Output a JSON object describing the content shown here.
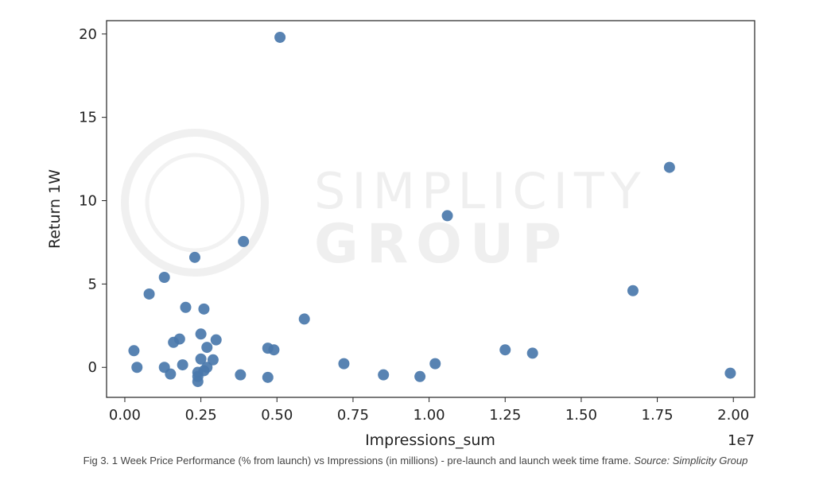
{
  "chart_data": {
    "type": "scatter",
    "xlabel": "Impressions_sum",
    "ylabel": "Return 1W",
    "x_offset_label": "1e7",
    "xlim": [
      -0.06,
      2.07
    ],
    "ylim": [
      -1.8,
      20.8
    ],
    "xticks": [
      0.0,
      0.25,
      0.5,
      0.75,
      1.0,
      1.25,
      1.5,
      1.75,
      2.0
    ],
    "xtick_labels": [
      "0.00",
      "0.25",
      "0.50",
      "0.75",
      "1.00",
      "1.25",
      "1.50",
      "1.75",
      "2.00"
    ],
    "yticks": [
      0,
      5,
      10,
      15,
      20
    ],
    "ytick_labels": [
      "0",
      "5",
      "10",
      "15",
      "20"
    ],
    "grid": false,
    "legend": "none",
    "marker_color": "#4a78ab",
    "points": [
      {
        "x": 0.04,
        "y": 0.0
      },
      {
        "x": 0.03,
        "y": 1.0
      },
      {
        "x": 0.08,
        "y": 4.4
      },
      {
        "x": 0.13,
        "y": 5.4
      },
      {
        "x": 0.13,
        "y": 0.0
      },
      {
        "x": 0.15,
        "y": -0.4
      },
      {
        "x": 0.16,
        "y": 1.5
      },
      {
        "x": 0.18,
        "y": 1.7
      },
      {
        "x": 0.19,
        "y": 0.15
      },
      {
        "x": 0.2,
        "y": 3.6
      },
      {
        "x": 0.23,
        "y": 6.6
      },
      {
        "x": 0.24,
        "y": -0.3
      },
      {
        "x": 0.24,
        "y": -0.55
      },
      {
        "x": 0.24,
        "y": -0.85
      },
      {
        "x": 0.25,
        "y": 0.5
      },
      {
        "x": 0.25,
        "y": 2.0
      },
      {
        "x": 0.26,
        "y": 3.5
      },
      {
        "x": 0.26,
        "y": -0.2
      },
      {
        "x": 0.27,
        "y": 1.2
      },
      {
        "x": 0.27,
        "y": 0.0
      },
      {
        "x": 0.29,
        "y": 0.45
      },
      {
        "x": 0.3,
        "y": 1.65
      },
      {
        "x": 0.38,
        "y": -0.45
      },
      {
        "x": 0.39,
        "y": 7.55
      },
      {
        "x": 0.47,
        "y": 1.15
      },
      {
        "x": 0.47,
        "y": -0.6
      },
      {
        "x": 0.49,
        "y": 1.05
      },
      {
        "x": 0.51,
        "y": 19.8
      },
      {
        "x": 0.59,
        "y": 2.9
      },
      {
        "x": 0.72,
        "y": 0.22
      },
      {
        "x": 0.85,
        "y": -0.45
      },
      {
        "x": 0.97,
        "y": -0.55
      },
      {
        "x": 1.02,
        "y": 0.22
      },
      {
        "x": 1.06,
        "y": 9.1
      },
      {
        "x": 1.25,
        "y": 1.05
      },
      {
        "x": 1.34,
        "y": 0.85
      },
      {
        "x": 1.67,
        "y": 4.6
      },
      {
        "x": 1.79,
        "y": 12.0
      },
      {
        "x": 1.99,
        "y": -0.35
      }
    ]
  },
  "watermark": {
    "line1": "SIMPLICITY",
    "line2": "GROUP"
  },
  "caption": {
    "text": "Fig 3. 1 Week Price Performance (% from launch) vs Impressions (in millions) - pre-launch and launch week time frame. ",
    "source": "Source: Simplicity Group"
  }
}
